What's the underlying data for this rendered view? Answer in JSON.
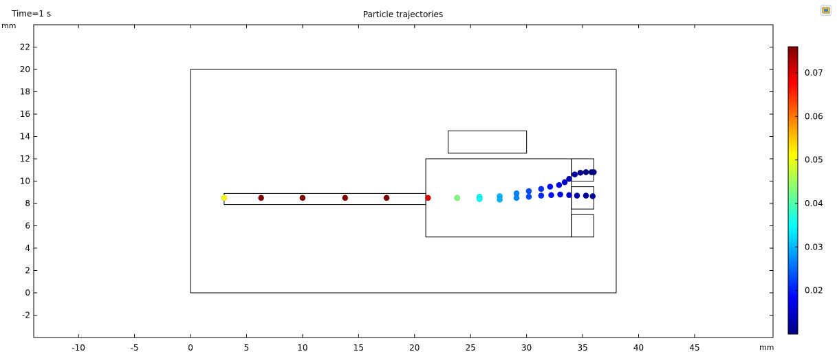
{
  "header": {
    "time_label": "Time=1 s",
    "title": "Particle trajectories",
    "y_unit": "mm",
    "x_unit": "mm"
  },
  "toolbar": {
    "icon": "camera-snapshot-icon"
  },
  "colors": {
    "particle_outline": "#000000",
    "geometry_line": "#000000",
    "colormap": "rainbow",
    "colormap_stops": [
      "#00007f",
      "#0000ff",
      "#007fff",
      "#00ffff",
      "#7fff7f",
      "#ffff00",
      "#ff7f00",
      "#ff0000",
      "#7f0000"
    ]
  },
  "chart_data": {
    "type": "scatter",
    "title": "Particle trajectories",
    "xlabel": "mm",
    "ylabel": "mm",
    "xlim": [
      -14,
      52
    ],
    "ylim": [
      -4,
      24
    ],
    "xticks": [
      "-10",
      "-5",
      "0",
      "5",
      "10",
      "15",
      "20",
      "25",
      "30",
      "35",
      "40",
      "45"
    ],
    "yticks": [
      "-2",
      "0",
      "2",
      "4",
      "6",
      "8",
      "10",
      "12",
      "14",
      "16",
      "18",
      "20",
      "22"
    ],
    "grid": false,
    "geometry_rectangles": [
      {
        "x0": 0,
        "y0": 0,
        "x1": 38,
        "y1": 20
      },
      {
        "x0": 3,
        "y0": 7.9,
        "x1": 21,
        "y1": 8.9
      },
      {
        "x0": 21,
        "y0": 5,
        "x1": 34,
        "y1": 12
      },
      {
        "x0": 23,
        "y0": 12.5,
        "x1": 30,
        "y1": 14.5
      },
      {
        "x0": 34,
        "y0": 10,
        "x1": 36,
        "y1": 12
      },
      {
        "x0": 34,
        "y0": 7.5,
        "x1": 36,
        "y1": 9.5
      },
      {
        "x0": 34,
        "y0": 5,
        "x1": 36,
        "y1": 7
      }
    ],
    "colorbar": {
      "min": 0.01,
      "max": 0.076,
      "ticks": [
        "0.02",
        "0.03",
        "0.04",
        "0.05",
        "0.06",
        "0.07"
      ],
      "colormap": "rainbow"
    },
    "points": [
      {
        "x": 3.0,
        "y": 8.5,
        "v": 0.051
      },
      {
        "x": 6.3,
        "y": 8.5,
        "v": 0.076
      },
      {
        "x": 10.0,
        "y": 8.5,
        "v": 0.076
      },
      {
        "x": 13.8,
        "y": 8.5,
        "v": 0.076
      },
      {
        "x": 17.5,
        "y": 8.5,
        "v": 0.076
      },
      {
        "x": 21.2,
        "y": 8.5,
        "v": 0.07
      },
      {
        "x": 23.8,
        "y": 8.5,
        "v": 0.043
      },
      {
        "x": 25.8,
        "y": 8.6,
        "v": 0.035
      },
      {
        "x": 25.8,
        "y": 8.4,
        "v": 0.035
      },
      {
        "x": 27.6,
        "y": 8.65,
        "v": 0.03
      },
      {
        "x": 27.6,
        "y": 8.35,
        "v": 0.03
      },
      {
        "x": 29.1,
        "y": 8.9,
        "v": 0.027
      },
      {
        "x": 29.1,
        "y": 8.5,
        "v": 0.027
      },
      {
        "x": 30.2,
        "y": 9.1,
        "v": 0.023
      },
      {
        "x": 30.2,
        "y": 8.6,
        "v": 0.023
      },
      {
        "x": 31.3,
        "y": 9.3,
        "v": 0.021
      },
      {
        "x": 31.3,
        "y": 8.7,
        "v": 0.021
      },
      {
        "x": 32.1,
        "y": 9.5,
        "v": 0.019
      },
      {
        "x": 32.2,
        "y": 8.75,
        "v": 0.019
      },
      {
        "x": 32.9,
        "y": 9.65,
        "v": 0.017
      },
      {
        "x": 33.0,
        "y": 8.8,
        "v": 0.017
      },
      {
        "x": 33.4,
        "y": 9.9,
        "v": 0.015
      },
      {
        "x": 33.8,
        "y": 10.2,
        "v": 0.013
      },
      {
        "x": 33.8,
        "y": 8.75,
        "v": 0.015
      },
      {
        "x": 34.3,
        "y": 10.6,
        "v": 0.012
      },
      {
        "x": 34.5,
        "y": 8.7,
        "v": 0.013
      },
      {
        "x": 34.8,
        "y": 10.75,
        "v": 0.011
      },
      {
        "x": 35.3,
        "y": 10.8,
        "v": 0.01
      },
      {
        "x": 35.3,
        "y": 8.7,
        "v": 0.012
      },
      {
        "x": 35.8,
        "y": 10.8,
        "v": 0.01
      },
      {
        "x": 36.0,
        "y": 10.8,
        "v": 0.01
      },
      {
        "x": 35.9,
        "y": 8.65,
        "v": 0.012
      }
    ]
  }
}
